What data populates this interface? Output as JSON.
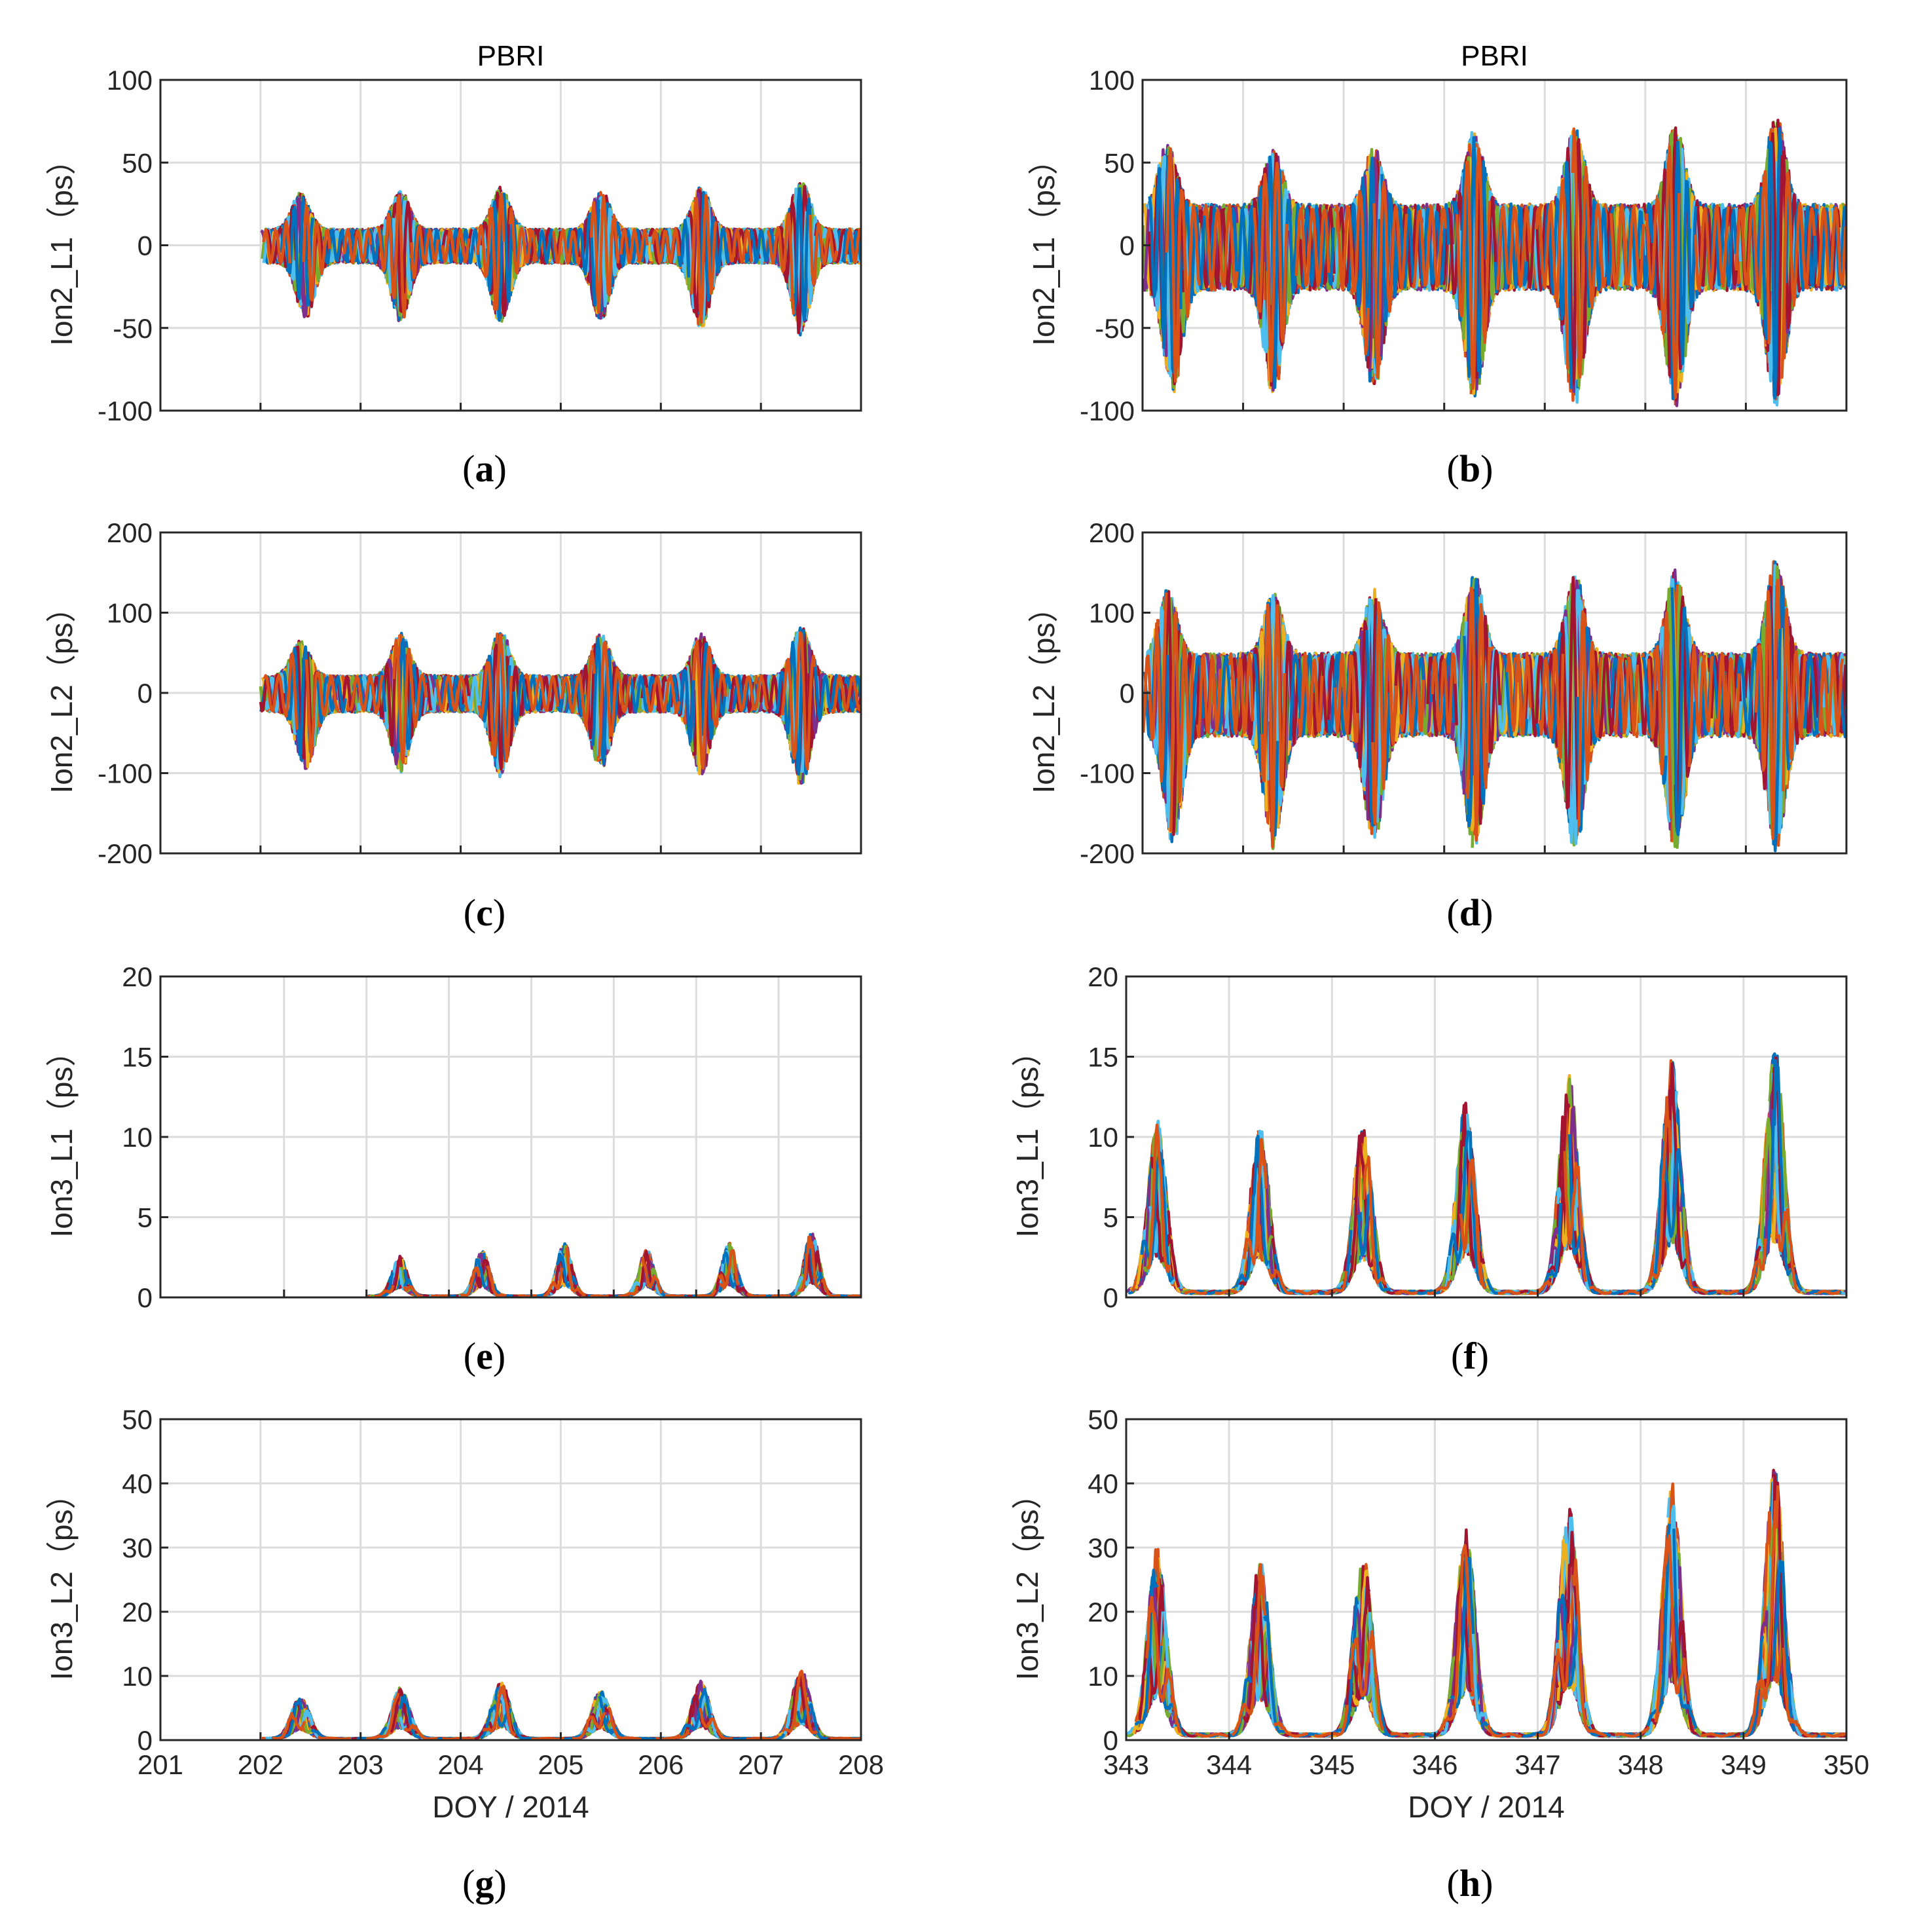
{
  "figure": {
    "colors": [
      "#0072BD",
      "#D95319",
      "#EDB120",
      "#7E2F8E",
      "#77AC30",
      "#4DBEEE",
      "#A2142F"
    ],
    "panels_total": 8
  },
  "chart_data": [
    {
      "type": "line",
      "id": "a",
      "caption_letter": "a",
      "title": "PBRI",
      "xlabel": "",
      "ylabel": "Ion2_L1（ps）",
      "xlim": [
        201,
        208
      ],
      "ylim": [
        -100,
        100
      ],
      "xticks": [
        201,
        202,
        203,
        204,
        205,
        206,
        207,
        208
      ],
      "xtick_labels_shown": false,
      "yticks": [
        -100,
        -50,
        0,
        50,
        100
      ],
      "data_start": 202.0,
      "data_end": 208.0,
      "grid": true,
      "series_description": "Multi-satellite (~30 series) oscillating ionospheric delay; daily envelope peaks",
      "daily_peaks_upper": [
        [
          202.4,
          32
        ],
        [
          203.4,
          34
        ],
        [
          204.4,
          36
        ],
        [
          205.4,
          34
        ],
        [
          206.4,
          36
        ],
        [
          207.4,
          40
        ]
      ],
      "daily_peaks_lower": [
        [
          202.45,
          -45
        ],
        [
          203.4,
          -47
        ],
        [
          204.4,
          -49
        ],
        [
          205.4,
          -47
        ],
        [
          206.4,
          -51
        ],
        [
          207.4,
          -55
        ]
      ],
      "night_envelope": 10,
      "symmetric": true
    },
    {
      "type": "line",
      "id": "b",
      "caption_letter": "b",
      "title": "PBRI",
      "xlabel": "",
      "ylabel": "Ion2_L1（ps）",
      "xlim": [
        343,
        350
      ],
      "ylim": [
        -100,
        100
      ],
      "xticks": [
        343,
        344,
        345,
        346,
        347,
        348,
        349,
        350
      ],
      "xtick_labels_shown": false,
      "yticks": [
        -100,
        -50,
        0,
        50,
        100
      ],
      "data_start": 343.0,
      "data_end": 350.0,
      "grid": true,
      "series_description": "Multi-satellite (~30 series) oscillating ionospheric delay; daily envelope peaks",
      "daily_peaks_upper": [
        [
          343.25,
          63
        ],
        [
          344.3,
          60
        ],
        [
          345.3,
          60
        ],
        [
          346.3,
          70
        ],
        [
          347.3,
          72
        ],
        [
          348.3,
          74
        ],
        [
          349.3,
          80
        ]
      ],
      "daily_peaks_lower": [
        [
          343.3,
          -90
        ],
        [
          344.3,
          -92
        ],
        [
          345.3,
          -88
        ],
        [
          346.3,
          -95
        ],
        [
          347.3,
          -100
        ],
        [
          348.3,
          -100
        ],
        [
          349.3,
          -100
        ]
      ],
      "night_envelope": 25,
      "symmetric": true
    },
    {
      "type": "line",
      "id": "c",
      "caption_letter": "c",
      "title": "",
      "xlabel": "",
      "ylabel": "Ion2_L2（ps）",
      "xlim": [
        201,
        208
      ],
      "ylim": [
        -200,
        200
      ],
      "xticks": [
        201,
        202,
        203,
        204,
        205,
        206,
        207,
        208
      ],
      "xtick_labels_shown": false,
      "yticks": [
        -200,
        -100,
        0,
        100,
        200
      ],
      "data_start": 202.0,
      "data_end": 208.0,
      "grid": true,
      "series_description": "Multi-satellite (~30 series) oscillating ionospheric delay; daily envelope peaks",
      "daily_peaks_upper": [
        [
          202.4,
          68
        ],
        [
          203.4,
          75
        ],
        [
          204.4,
          78
        ],
        [
          205.4,
          74
        ],
        [
          206.4,
          76
        ],
        [
          207.4,
          85
        ]
      ],
      "daily_peaks_lower": [
        [
          202.45,
          -95
        ],
        [
          203.4,
          -100
        ],
        [
          204.4,
          -105
        ],
        [
          205.4,
          -98
        ],
        [
          206.4,
          -108
        ],
        [
          207.4,
          -118
        ]
      ],
      "night_envelope": 22,
      "symmetric": true
    },
    {
      "type": "line",
      "id": "d",
      "caption_letter": "d",
      "title": "",
      "xlabel": "",
      "ylabel": "Ion2_L2（ps）",
      "xlim": [
        343,
        350
      ],
      "ylim": [
        -200,
        200
      ],
      "xticks": [
        343,
        344,
        345,
        346,
        347,
        348,
        349,
        350
      ],
      "xtick_labels_shown": false,
      "yticks": [
        -200,
        -100,
        0,
        100,
        200
      ],
      "data_start": 343.0,
      "data_end": 350.0,
      "grid": true,
      "series_description": "Multi-satellite (~30 series) oscillating ionospheric delay; daily envelope peaks",
      "daily_peaks_upper": [
        [
          343.25,
          133
        ],
        [
          344.3,
          128
        ],
        [
          345.3,
          130
        ],
        [
          346.3,
          148
        ],
        [
          347.3,
          152
        ],
        [
          348.3,
          155
        ],
        [
          349.3,
          168
        ]
      ],
      "daily_peaks_lower": [
        [
          343.3,
          -190
        ],
        [
          344.3,
          -195
        ],
        [
          345.3,
          -188
        ],
        [
          346.3,
          -198
        ],
        [
          347.3,
          -200
        ],
        [
          348.3,
          -200
        ],
        [
          349.3,
          -200
        ]
      ],
      "night_envelope": 50,
      "symmetric": true
    },
    {
      "type": "line",
      "id": "e",
      "caption_letter": "e",
      "title": "",
      "xlabel": "",
      "ylabel": "Ion3_L1（ps）",
      "xlim": [
        199.5,
        208
      ],
      "ylim": [
        0,
        20
      ],
      "xticks": [
        201,
        202,
        203,
        204,
        205,
        206,
        207,
        208
      ],
      "xtick_labels_shown": false,
      "yticks": [
        0,
        5,
        10,
        15,
        20
      ],
      "data_start": 202.0,
      "data_end": 208.0,
      "grid": true,
      "series_description": "Multi-satellite (~30 series) positive ionospheric delay; daily maxima",
      "daily_peaks_upper": [
        [
          202.4,
          2.6
        ],
        [
          203.4,
          3.0
        ],
        [
          204.4,
          3.4
        ],
        [
          205.4,
          3.0
        ],
        [
          206.4,
          3.4
        ],
        [
          207.4,
          4.1
        ]
      ],
      "night_level": 0.1,
      "symmetric": false
    },
    {
      "type": "line",
      "id": "f",
      "caption_letter": "f",
      "title": "",
      "xlabel": "",
      "ylabel": "Ion3_L1（ps）",
      "xlim": [
        343,
        350
      ],
      "ylim": [
        0,
        20
      ],
      "xticks": [
        343,
        344,
        345,
        346,
        347,
        348,
        349,
        350
      ],
      "xtick_labels_shown": false,
      "yticks": [
        0,
        5,
        10,
        15,
        20
      ],
      "data_start": 343.0,
      "data_end": 350.0,
      "grid": true,
      "series_description": "Multi-satellite (~30 series) positive ionospheric delay; daily maxima",
      "daily_peaks_upper": [
        [
          343.3,
          11.2
        ],
        [
          344.3,
          10.8
        ],
        [
          345.3,
          10.8
        ],
        [
          346.3,
          12.2
        ],
        [
          347.3,
          14.0
        ],
        [
          348.3,
          15.0
        ],
        [
          349.3,
          16.0
        ]
      ],
      "night_level": 0.4,
      "symmetric": false
    },
    {
      "type": "line",
      "id": "g",
      "caption_letter": "g",
      "title": "",
      "xlabel": "DOY / 2014",
      "ylabel": "Ion3_L2（ps）",
      "xlim": [
        201,
        208
      ],
      "ylim": [
        0,
        50
      ],
      "xticks": [
        201,
        202,
        203,
        204,
        205,
        206,
        207,
        208
      ],
      "xtick_labels_shown": true,
      "yticks": [
        0,
        10,
        20,
        30,
        40,
        50
      ],
      "data_start": 202.0,
      "data_end": 208.0,
      "grid": true,
      "series_description": "Multi-satellite (~30 series) positive ionospheric delay; daily maxima",
      "daily_peaks_upper": [
        [
          202.4,
          7.0
        ],
        [
          203.4,
          8.2
        ],
        [
          204.4,
          9.2
        ],
        [
          205.4,
          8.0
        ],
        [
          206.4,
          9.2
        ],
        [
          207.4,
          11.0
        ]
      ],
      "night_level": 0.3,
      "symmetric": false
    },
    {
      "type": "line",
      "id": "h",
      "caption_letter": "h",
      "title": "",
      "xlabel": "DOY / 2014",
      "ylabel": "Ion3_L2（ps）",
      "xlim": [
        343,
        350
      ],
      "ylim": [
        0,
        50
      ],
      "xticks": [
        343,
        344,
        345,
        346,
        347,
        348,
        349,
        350
      ],
      "xtick_labels_shown": true,
      "yticks": [
        0,
        10,
        20,
        30,
        40,
        50
      ],
      "data_start": 343.0,
      "data_end": 350.0,
      "grid": true,
      "series_description": "Multi-satellite (~30 series) positive ionospheric delay; daily maxima",
      "daily_peaks_upper": [
        [
          343.3,
          30.5
        ],
        [
          344.3,
          28.5
        ],
        [
          345.3,
          29.5
        ],
        [
          346.3,
          33.5
        ],
        [
          347.3,
          37.5
        ],
        [
          348.3,
          40.5
        ],
        [
          349.3,
          43.5
        ]
      ],
      "night_level": 1.0,
      "symmetric": false
    }
  ]
}
